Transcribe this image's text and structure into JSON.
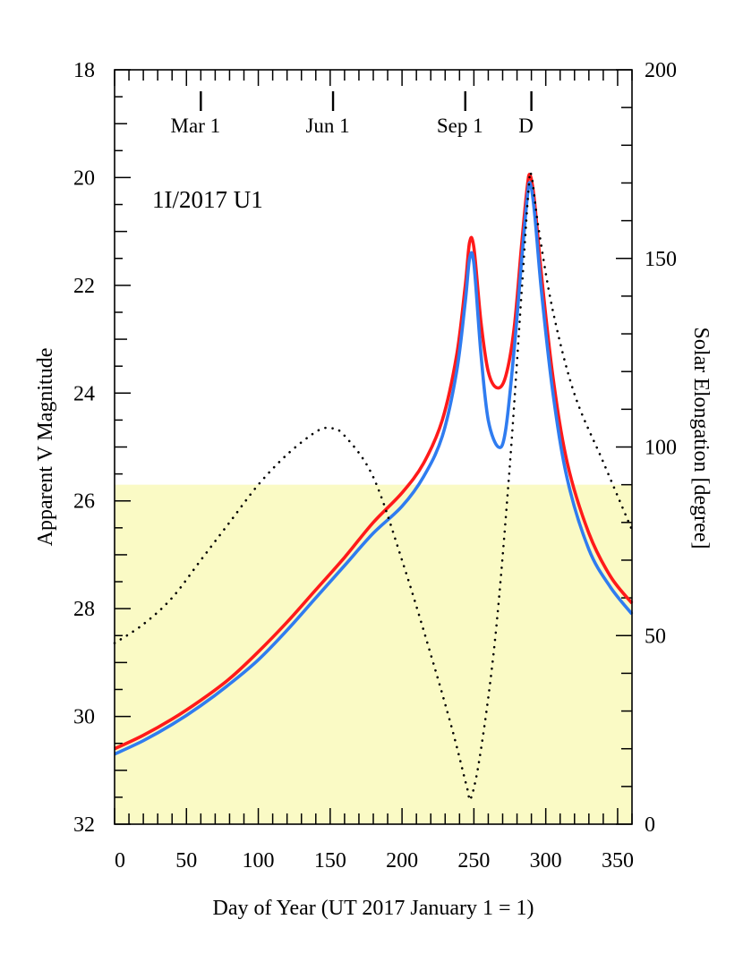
{
  "chart_data": {
    "type": "line",
    "title": "",
    "annotation": "1I/2017 U1",
    "xlabel": "Day of Year (UT 2017 January 1 = 1)",
    "ylabel_left": "Apparent V Magnitude",
    "ylabel_right": "Solar Elongation [degree]",
    "xlim": [
      0,
      360
    ],
    "ylim_left": [
      18,
      32
    ],
    "ylim_left_inverted": true,
    "ylim_right": [
      0,
      200
    ],
    "x_ticks": [
      "0",
      "50",
      "100",
      "150",
      "200",
      "250",
      "300",
      "350"
    ],
    "y_left_ticks": [
      "18",
      "20",
      "22",
      "24",
      "26",
      "28",
      "30",
      "32"
    ],
    "y_right_ticks": [
      "0",
      "50",
      "100",
      "150",
      "200"
    ],
    "shaded_region": {
      "from_magnitude": 25.7,
      "to_magnitude": 32,
      "color": "#fafac5"
    },
    "date_markers": [
      {
        "label": "Mar 1",
        "day": 60
      },
      {
        "label": "Jun 1",
        "day": 152
      },
      {
        "label": "Sep 1",
        "day": 244
      },
      {
        "label": "D",
        "day": 290
      }
    ],
    "series": [
      {
        "axis": "left",
        "color": "#ff1a1a",
        "style": "solid",
        "x": [
          0,
          20,
          40,
          60,
          80,
          100,
          120,
          140,
          160,
          180,
          200,
          215,
          228,
          238,
          244,
          247,
          250,
          255,
          260,
          266,
          272,
          278,
          283,
          287,
          289,
          292,
          297,
          305,
          315,
          330,
          345,
          360
        ],
        "y": [
          30.6,
          30.35,
          30.05,
          29.7,
          29.3,
          28.8,
          28.25,
          27.65,
          27.05,
          26.4,
          25.85,
          25.3,
          24.5,
          23.3,
          22.0,
          21.2,
          21.3,
          22.7,
          23.6,
          23.9,
          23.7,
          22.8,
          21.3,
          20.2,
          19.95,
          20.4,
          21.8,
          23.7,
          25.3,
          26.6,
          27.4,
          27.9
        ]
      },
      {
        "axis": "left",
        "color": "#2f7cf0",
        "style": "solid",
        "x": [
          0,
          20,
          40,
          60,
          80,
          100,
          120,
          140,
          160,
          180,
          200,
          215,
          228,
          238,
          244,
          247,
          250,
          255,
          260,
          267,
          272,
          278,
          283,
          287,
          289,
          292,
          297,
          305,
          315,
          330,
          345,
          360
        ],
        "y": [
          30.7,
          30.45,
          30.15,
          29.8,
          29.4,
          28.95,
          28.4,
          27.8,
          27.2,
          26.6,
          26.1,
          25.55,
          24.8,
          23.6,
          22.3,
          21.5,
          21.6,
          23.3,
          24.5,
          25.0,
          24.7,
          23.2,
          21.6,
          20.4,
          20.1,
          20.6,
          22.1,
          24.0,
          25.6,
          26.9,
          27.6,
          28.1
        ]
      },
      {
        "axis": "right",
        "color": "#000000",
        "style": "dotted",
        "x": [
          0,
          20,
          40,
          60,
          80,
          100,
          120,
          140,
          150,
          160,
          180,
          200,
          220,
          235,
          245,
          248,
          255,
          265,
          275,
          283,
          288,
          290,
          295,
          305,
          320,
          340,
          360
        ],
        "y": [
          48,
          53,
          60,
          70,
          80,
          90,
          98,
          104,
          105,
          103,
          92,
          70,
          45,
          25,
          10,
          7,
          20,
          50,
          95,
          140,
          168,
          172,
          158,
          136,
          114,
          96,
          78
        ]
      }
    ]
  }
}
